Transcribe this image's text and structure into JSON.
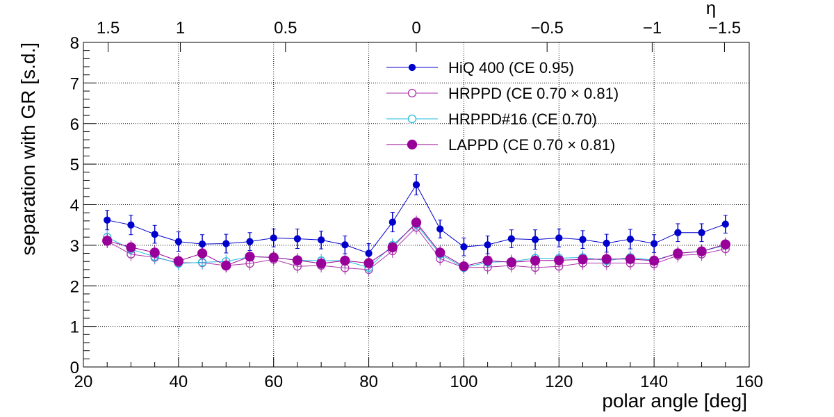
{
  "chart_data": {
    "type": "scatter",
    "title": "",
    "xlabel": "polar angle [deg]",
    "ylabel": "separation with GR [s.d.]",
    "xlim": [
      20,
      160
    ],
    "ylim": [
      0,
      8
    ],
    "x_ticks": [
      20,
      40,
      60,
      80,
      100,
      120,
      140,
      160
    ],
    "y_ticks": [
      0,
      1,
      2,
      3,
      4,
      5,
      6,
      7,
      8
    ],
    "top_axis": {
      "label": "η",
      "ticks": [
        {
          "label": "1.5",
          "at": 25.2
        },
        {
          "label": "1",
          "at": 40.4
        },
        {
          "label": "0.5",
          "at": 62.5
        },
        {
          "label": "0",
          "at": 90
        },
        {
          "label": "−0.5",
          "at": 117.5
        },
        {
          "label": "−1",
          "at": 139.6
        },
        {
          "label": "−1.5",
          "at": 154.8
        }
      ]
    },
    "grid": true,
    "legend_position": "top-center",
    "x": [
      25,
      30,
      35,
      40,
      45,
      50,
      55,
      60,
      65,
      70,
      75,
      80,
      85,
      90,
      95,
      100,
      105,
      110,
      115,
      120,
      125,
      130,
      135,
      140,
      145,
      150,
      155
    ],
    "series": [
      {
        "name": "HiQ 400 (CE 0.95)",
        "color": "#0000cc",
        "marker": "filled-small",
        "values": [
          3.62,
          3.5,
          3.27,
          3.09,
          3.03,
          3.04,
          3.09,
          3.18,
          3.16,
          3.13,
          3.01,
          2.8,
          3.57,
          4.49,
          3.4,
          2.96,
          3.01,
          3.16,
          3.14,
          3.18,
          3.14,
          3.05,
          3.15,
          3.04,
          3.31,
          3.31,
          3.52
        ],
        "errors": [
          0.24,
          0.24,
          0.22,
          0.24,
          0.23,
          0.23,
          0.22,
          0.22,
          0.24,
          0.22,
          0.22,
          0.24,
          0.24,
          0.25,
          0.22,
          0.22,
          0.22,
          0.22,
          0.24,
          0.22,
          0.22,
          0.22,
          0.24,
          0.22,
          0.22,
          0.22,
          0.22
        ]
      },
      {
        "name": "HRPPD (CE 0.70  × 0.81)",
        "color": "#aa33aa",
        "marker": "open",
        "values": [
          3.1,
          2.78,
          2.7,
          2.57,
          2.57,
          2.5,
          2.55,
          2.65,
          2.48,
          2.5,
          2.44,
          2.4,
          2.86,
          3.44,
          2.67,
          2.45,
          2.46,
          2.5,
          2.45,
          2.48,
          2.56,
          2.56,
          2.56,
          2.54,
          2.75,
          2.78,
          2.91
        ]
      },
      {
        "name": "HRPPD#16 (CE 0.70)",
        "color": "#22bbdd",
        "marker": "open",
        "values": [
          3.2,
          2.9,
          2.72,
          2.55,
          2.58,
          2.6,
          2.72,
          2.7,
          2.63,
          2.62,
          2.62,
          2.45,
          3.0,
          3.52,
          2.78,
          2.45,
          2.58,
          2.6,
          2.68,
          2.68,
          2.7,
          2.62,
          2.7,
          2.63,
          2.8,
          2.85,
          3.0
        ]
      },
      {
        "name": "LAPPD (CE 0.70  × 0.81)",
        "color": "#990099",
        "marker": "filled-large",
        "values": [
          3.11,
          2.95,
          2.82,
          2.61,
          2.8,
          2.5,
          2.72,
          2.7,
          2.63,
          2.55,
          2.62,
          2.56,
          2.95,
          3.56,
          2.82,
          2.48,
          2.62,
          2.58,
          2.62,
          2.63,
          2.65,
          2.66,
          2.66,
          2.62,
          2.8,
          2.85,
          3.02
        ]
      }
    ]
  }
}
